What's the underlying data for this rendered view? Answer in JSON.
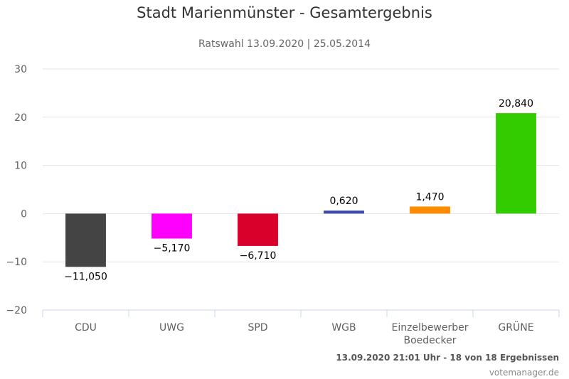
{
  "chart_data": {
    "type": "bar",
    "title": "Stadt Marienmünster - Gesamtergebnis",
    "subtitle": "Ratswahl 13.09.2020 | 25.05.2014",
    "categories": [
      [
        "CDU"
      ],
      [
        "UWG"
      ],
      [
        "SPD"
      ],
      [
        "WGB"
      ],
      [
        "Einzelbewerber",
        "Boedecker"
      ],
      [
        "GRÜNE"
      ]
    ],
    "values": [
      -11.05,
      -5.17,
      -6.71,
      0.62,
      1.47,
      20.84
    ],
    "data_labels": [
      "-11,050",
      "-5,170",
      "-6,710",
      "0,620",
      "1,470",
      "20,840"
    ],
    "colors": [
      "#444444",
      "#ff00ff",
      "#d9002b",
      "#3d4aa8",
      "#ff8c00",
      "#33cc00"
    ],
    "ylim": [
      -20,
      30
    ],
    "yticks": [
      -20,
      -10,
      0,
      10,
      20,
      30
    ],
    "ytick_labels": [
      "−20",
      "−10",
      "0",
      "10",
      "20",
      "30"
    ],
    "grid": true,
    "xlabel": "",
    "ylabel": ""
  },
  "footer": {
    "status": "13.09.2020 21:01 Uhr - 18 von 18 Ergebnissen",
    "credit": "votemanager.de"
  }
}
